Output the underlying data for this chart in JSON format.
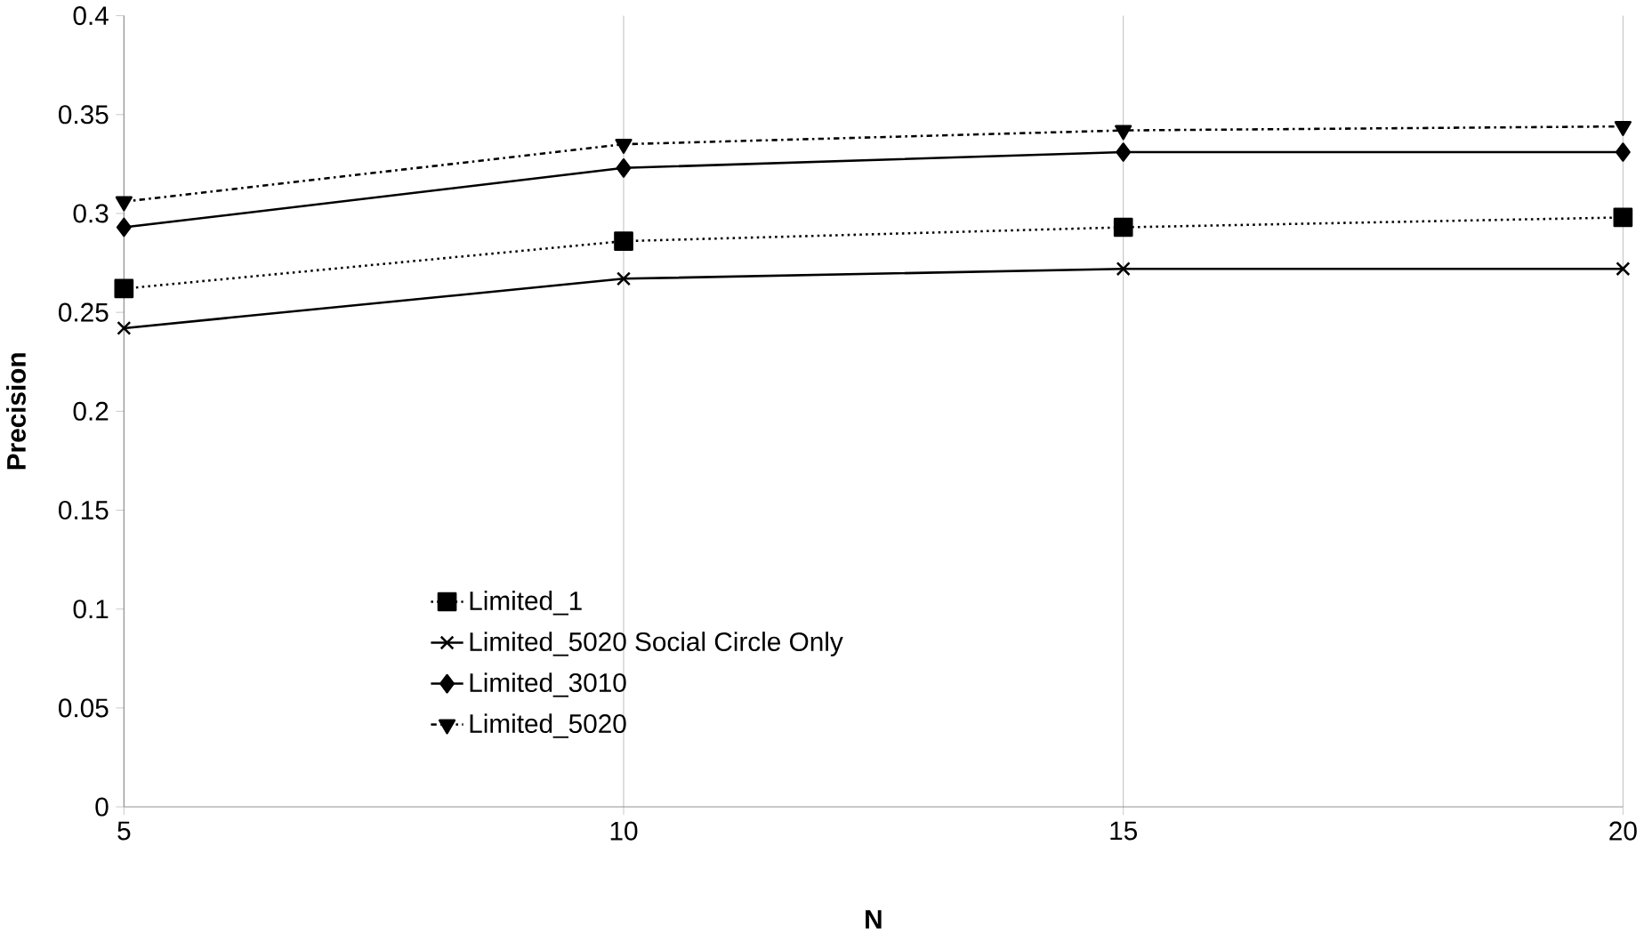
{
  "chart_data": {
    "type": "line",
    "xlabel": "N",
    "ylabel": "Precision",
    "x": [
      5,
      10,
      15,
      20
    ],
    "series": [
      {
        "name": "Limited_1",
        "color": "#000000",
        "values": [
          0.262,
          0.286,
          0.293,
          0.298
        ],
        "marker": "square",
        "line_style": "dotted"
      },
      {
        "name": "Limited_5020 Social Circle Only",
        "color": "#000000",
        "values": [
          0.242,
          0.267,
          0.272,
          0.272
        ],
        "marker": "cross",
        "line_style": "solid"
      },
      {
        "name": "Limited_3010",
        "color": "#000000",
        "values": [
          0.293,
          0.323,
          0.331,
          0.331
        ],
        "marker": "diamond",
        "line_style": "solid"
      },
      {
        "name": "Limited_5020",
        "color": "#000000",
        "values": [
          0.306,
          0.335,
          0.342,
          0.344
        ],
        "marker": "triangle",
        "line_style": "dashed"
      }
    ],
    "xlim": [
      5,
      20
    ],
    "xticks": [
      5,
      10,
      15,
      20
    ],
    "ylim": [
      0,
      0.4
    ],
    "yticks": [
      0,
      0.05,
      0.1,
      0.15,
      0.2,
      0.25,
      0.3,
      0.35,
      0.4
    ],
    "grid": "x",
    "legend": "bottom"
  }
}
